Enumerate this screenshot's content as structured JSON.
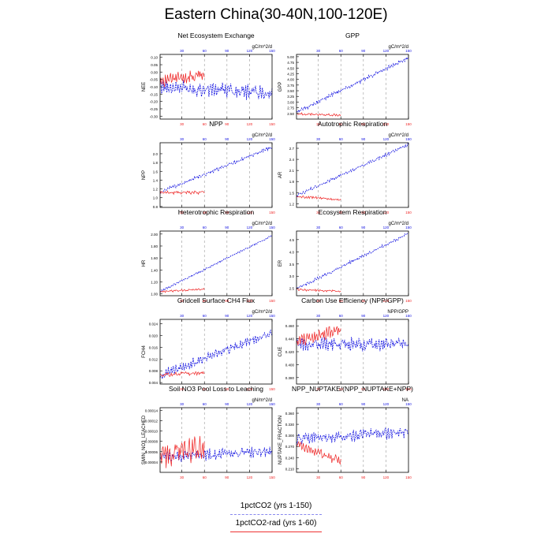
{
  "page": {
    "title": "Eastern China(30-40N,100-120E)"
  },
  "colors": {
    "blue": "#1010e0",
    "red": "#ee2222",
    "grid": "#999999"
  },
  "legend": {
    "items": [
      {
        "label": "1pctCO2 (yrs 1-150)",
        "color": "#8888ee",
        "style": "dashed"
      },
      {
        "label": "1pctCO2-rad (yrs 1-60)",
        "color": "#ee3333",
        "style": "solid"
      }
    ]
  },
  "chart_data": [
    {
      "type": "line",
      "title": "Net Ecosystem Exchange",
      "units": "gC/m^2/d",
      "ylabel": "NEE",
      "ylim": [
        -0.32,
        0.12
      ],
      "yticks": [
        0.1,
        0.05,
        0.0,
        -0.05,
        -0.1,
        -0.15,
        -0.2,
        -0.25,
        -0.3
      ],
      "ytick_labels": [
        "0.10",
        "0.05",
        "0.00",
        "-0.05",
        "-0.10",
        "-0.15",
        "-0.20",
        "-0.25",
        "-0.30"
      ],
      "xlim": [
        1,
        150
      ],
      "xticks": [
        30,
        60,
        90,
        120,
        150
      ],
      "grid": "vertical-dashed",
      "series": [
        {
          "color": "blue",
          "x": [
            1,
            150
          ],
          "trend": [
            -0.1,
            -0.14
          ],
          "amplitude": 0.06
        },
        {
          "color": "red",
          "x": [
            1,
            60
          ],
          "trend": [
            -0.06,
            -0.02
          ],
          "amplitude": 0.05
        }
      ]
    },
    {
      "type": "line",
      "title": "GPP",
      "units": "gC/m^2/d",
      "ylabel": "GPP",
      "ylim": [
        2.25,
        5.1
      ],
      "yticks": [
        5.0,
        4.75,
        4.5,
        4.25,
        4.0,
        3.75,
        3.5,
        3.25,
        3.0,
        2.75,
        2.5
      ],
      "ytick_labels": [
        "5.00",
        "4.75",
        "4.50",
        "4.25",
        "4.00",
        "3.75",
        "3.50",
        "3.25",
        "3.00",
        "2.75",
        "2.50"
      ],
      "xlim": [
        1,
        150
      ],
      "xticks": [
        30,
        60,
        90,
        120,
        150
      ],
      "grid": "vertical-dashed",
      "series": [
        {
          "color": "blue",
          "x": [
            1,
            150
          ],
          "trend": [
            2.55,
            4.95
          ],
          "amplitude": 0.1
        },
        {
          "color": "red",
          "x": [
            1,
            60
          ],
          "trend": [
            2.48,
            2.42
          ],
          "amplitude": 0.06
        }
      ]
    },
    {
      "type": "line",
      "title": "NPP",
      "units": "gC/m^2/d",
      "ylabel": "NPP",
      "ylim": [
        0.78,
        2.25
      ],
      "yticks": [
        2.0,
        1.8,
        1.6,
        1.4,
        1.2,
        1.0,
        0.8
      ],
      "ytick_labels": [
        "2.0",
        "1.8",
        "1.6",
        "1.4",
        "1.2",
        "1.0",
        "0.8"
      ],
      "xlim": [
        1,
        150
      ],
      "xticks": [
        30,
        60,
        90,
        120,
        150
      ],
      "grid": "vertical-dashed",
      "series": [
        {
          "color": "blue",
          "x": [
            1,
            150
          ],
          "trend": [
            1.12,
            2.15
          ],
          "amplitude": 0.05
        },
        {
          "color": "red",
          "x": [
            1,
            60
          ],
          "trend": [
            1.12,
            1.12
          ],
          "amplitude": 0.05
        }
      ]
    },
    {
      "type": "line",
      "title": "Autotrophic Respiration",
      "units": "gC/m^2/d",
      "ylabel": "AR",
      "ylim": [
        1.1,
        2.85
      ],
      "yticks": [
        2.7,
        2.4,
        2.1,
        1.8,
        1.5,
        1.2
      ],
      "ytick_labels": [
        "2.7",
        "2.4",
        "2.1",
        "1.8",
        "1.5",
        "1.2"
      ],
      "xlim": [
        1,
        150
      ],
      "xticks": [
        30,
        60,
        90,
        120,
        150
      ],
      "grid": "vertical-dashed",
      "series": [
        {
          "color": "blue",
          "x": [
            1,
            150
          ],
          "trend": [
            1.42,
            2.8
          ],
          "amplitude": 0.05
        },
        {
          "color": "red",
          "x": [
            1,
            60
          ],
          "trend": [
            1.4,
            1.3
          ],
          "amplitude": 0.04
        }
      ]
    },
    {
      "type": "line",
      "title": "Heterotrophic Respiration",
      "units": "gC/m^2/d",
      "ylabel": "HR",
      "ylim": [
        0.97,
        2.05
      ],
      "yticks": [
        2.0,
        1.8,
        1.6,
        1.4,
        1.2,
        1.0
      ],
      "ytick_labels": [
        "2.00",
        "1.80",
        "1.60",
        "1.40",
        "1.20",
        "1.00"
      ],
      "xlim": [
        1,
        150
      ],
      "xticks": [
        30,
        60,
        90,
        120,
        150
      ],
      "grid": "vertical-dashed",
      "series": [
        {
          "color": "blue",
          "x": [
            1,
            150
          ],
          "trend": [
            1.04,
            1.97
          ],
          "amplitude": 0.02
        },
        {
          "color": "red",
          "x": [
            1,
            60
          ],
          "trend": [
            1.04,
            1.08
          ],
          "amplitude": 0.02
        }
      ]
    },
    {
      "type": "line",
      "title": "Ecosystem Respiration",
      "units": "gC/m^2/d",
      "ylabel": "ER",
      "ylim": [
        2.2,
        4.85
      ],
      "yticks": [
        4.5,
        4.0,
        3.5,
        3.0,
        2.5
      ],
      "ytick_labels": [
        "4.5",
        "4.0",
        "3.5",
        "3.0",
        "2.5"
      ],
      "xlim": [
        1,
        150
      ],
      "xticks": [
        30,
        60,
        90,
        120,
        150
      ],
      "grid": "vertical-dashed",
      "series": [
        {
          "color": "blue",
          "x": [
            1,
            150
          ],
          "trend": [
            2.48,
            4.75
          ],
          "amplitude": 0.07
        },
        {
          "color": "red",
          "x": [
            1,
            60
          ],
          "trend": [
            2.45,
            2.38
          ],
          "amplitude": 0.05
        }
      ]
    },
    {
      "type": "line",
      "title": "Gridcell Surface CH4 Flux",
      "units": "gC/m^2/d",
      "ylabel": "FCH4",
      "ylim": [
        0.0035,
        0.0255
      ],
      "yticks": [
        0.024,
        0.02,
        0.016,
        0.012,
        0.008,
        0.004
      ],
      "ytick_labels": [
        "0.024",
        "0.020",
        "0.016",
        "0.012",
        "0.008",
        "0.004"
      ],
      "xlim": [
        1,
        150
      ],
      "xticks": [
        30,
        60,
        90,
        120,
        150
      ],
      "grid": "vertical-dashed",
      "series": [
        {
          "color": "blue",
          "x": [
            1,
            150
          ],
          "trend": [
            0.0065,
            0.021
          ],
          "amplitude": 0.0018
        },
        {
          "color": "red",
          "x": [
            1,
            60
          ],
          "trend": [
            0.0065,
            0.0075
          ],
          "amplitude": 0.0008
        }
      ]
    },
    {
      "type": "line",
      "title": "Carbon Use Efficiency (NPP/GPP)",
      "units": "NPP/GPP",
      "ylabel": "CUE",
      "ylim": [
        0.37,
        0.47
      ],
      "yticks": [
        0.46,
        0.44,
        0.42,
        0.4,
        0.38
      ],
      "ytick_labels": [
        "0.460",
        "0.440",
        "0.420",
        "0.400",
        "0.380"
      ],
      "xlim": [
        1,
        150
      ],
      "xticks": [
        30,
        60,
        90,
        120,
        150
      ],
      "grid": "vertical-dashed",
      "series": [
        {
          "color": "blue",
          "x": [
            1,
            150
          ],
          "trend": [
            0.432,
            0.432
          ],
          "amplitude": 0.012
        },
        {
          "color": "red",
          "x": [
            1,
            60
          ],
          "trend": [
            0.435,
            0.455
          ],
          "amplitude": 0.012
        }
      ]
    },
    {
      "type": "line",
      "title": "Soil NO3 Pool Loss to Leaching",
      "units": "gN/m^2/d",
      "ylabel": "SMIN_NO3_LEACHED",
      "ylim": [
        2e-05,
        0.000145
      ],
      "yticks": [
        0.00014,
        0.00012,
        0.0001,
        8e-05,
        6e-05,
        4e-05
      ],
      "ytick_labels": [
        "0.00014",
        "0.00012",
        "0.00010",
        "0.00008",
        "0.00006",
        "0.00004"
      ],
      "xlim": [
        1,
        150
      ],
      "xticks": [
        30,
        60,
        90,
        120,
        150
      ],
      "grid": "vertical-dashed",
      "series": [
        {
          "color": "blue",
          "x": [
            1,
            150
          ],
          "trend": [
            5e-05,
            6e-05
          ],
          "amplitude": 1.2e-05
        },
        {
          "color": "red",
          "x": [
            1,
            60
          ],
          "trend": [
            5.5e-05,
            7e-05
          ],
          "amplitude": 3e-05
        }
      ]
    },
    {
      "type": "line",
      "title": "NPP_NUPTAKE/(NPP_NUPTAKE+NPP)",
      "units": "NA",
      "ylabel": "NUPTAKE_FRACTION",
      "ylim": [
        0.2,
        0.375
      ],
      "yticks": [
        0.36,
        0.33,
        0.3,
        0.27,
        0.24,
        0.21
      ],
      "ytick_labels": [
        "0.360",
        "0.330",
        "0.300",
        "0.270",
        "0.240",
        "0.210"
      ],
      "xlim": [
        1,
        150
      ],
      "xticks": [
        30,
        60,
        90,
        120,
        150
      ],
      "grid": "vertical-dashed",
      "series": [
        {
          "color": "blue",
          "x": [
            1,
            150
          ],
          "trend": [
            0.29,
            0.31
          ],
          "amplitude": 0.018
        },
        {
          "color": "red",
          "x": [
            1,
            60
          ],
          "trend": [
            0.275,
            0.23
          ],
          "amplitude": 0.015
        }
      ]
    }
  ]
}
